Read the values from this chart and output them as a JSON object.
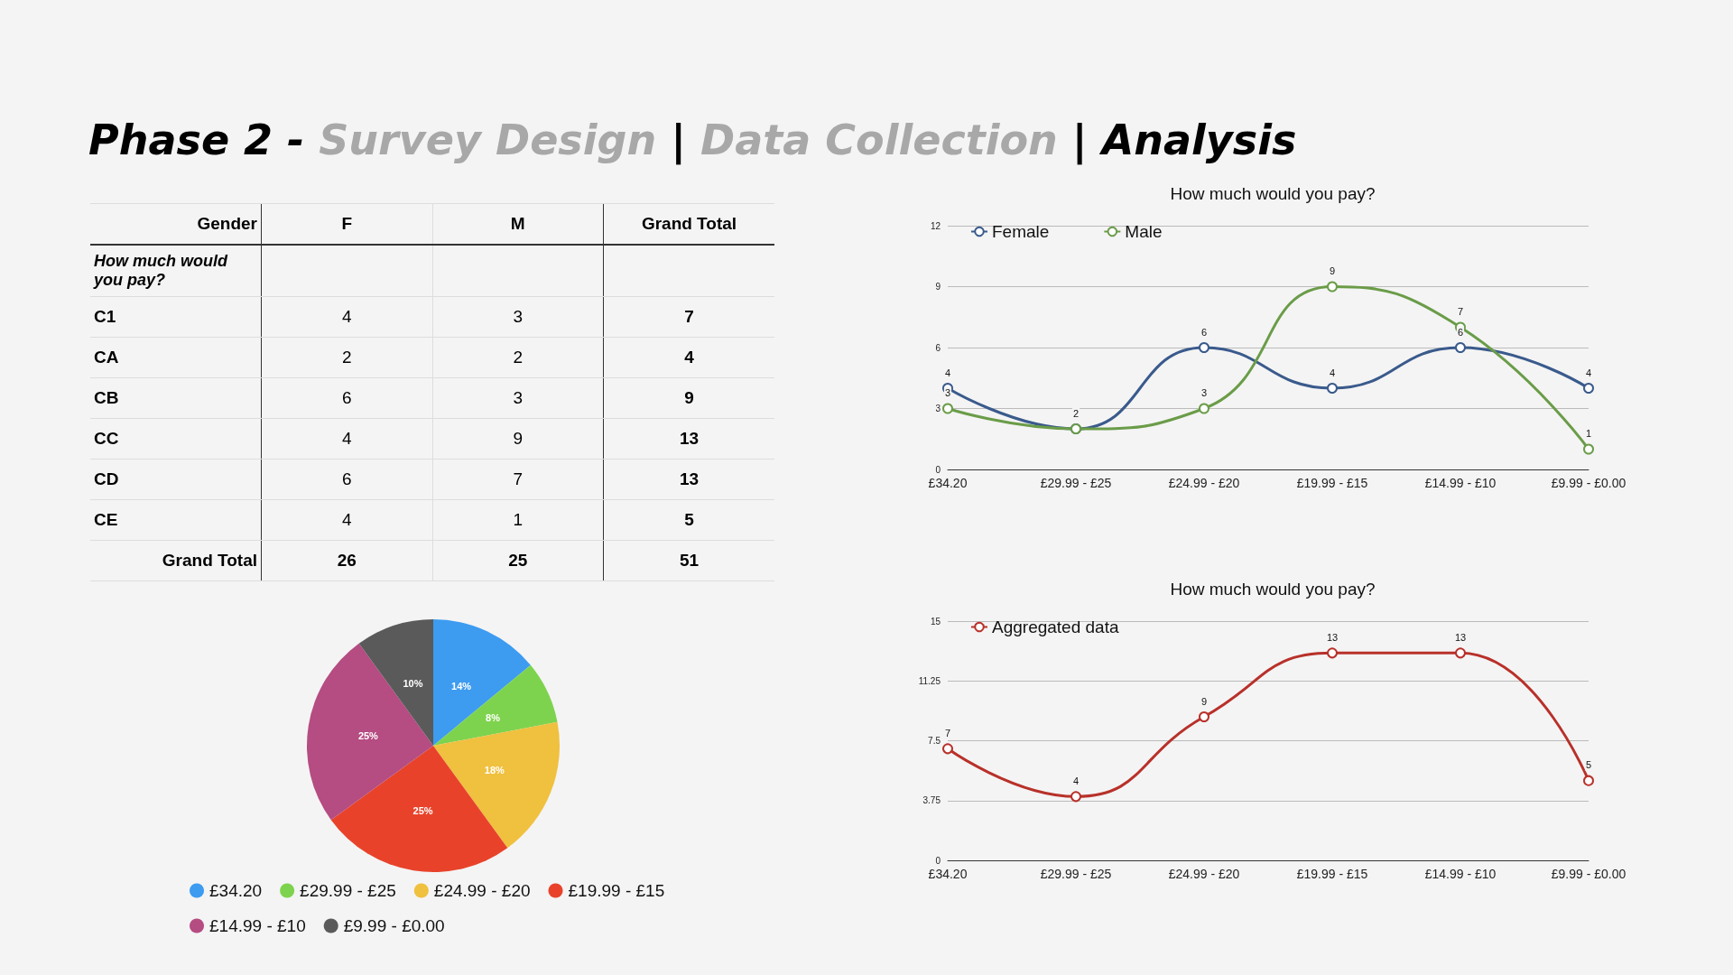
{
  "chart_data": [
    {
      "type": "other",
      "title": "Phase 2 - Survey Design | Data Collection | Analysis",
      "xlabel": "Gender",
      "ylabel": "How much would you pay?",
      "categories": [
        "C1",
        "CA",
        "CB",
        "CC",
        "CD",
        "CE",
        "Grand Total"
      ],
      "data_labels": true,
      "series": [
        {
          "name": "F",
          "values": [
            4,
            2,
            6,
            4,
            6,
            4,
            26
          ]
        },
        {
          "name": "M",
          "values": [
            3,
            2,
            3,
            9,
            7,
            1,
            25
          ]
        },
        {
          "name": "Grand Total",
          "values": [
            7,
            4,
            9,
            13,
            13,
            5,
            51
          ]
        }
      ]
    },
    {
      "type": "pie",
      "categories": [
        "£34.20",
        "£29.99 - £25",
        "£24.99 - £20",
        "£19.99 - £15",
        "£14.99 - £10",
        "£9.99 - £0.00"
      ],
      "values": [
        14,
        8,
        18,
        25,
        25,
        10
      ],
      "value_labels": [
        "14%",
        "8%",
        "18%",
        "25%",
        "25%",
        "10%"
      ],
      "colors": [
        "#3d9bf0",
        "#7ed34e",
        "#f0c03f",
        "#e8432a",
        "#b54c82",
        "#5a5a5a"
      ],
      "legend": "bottom"
    },
    {
      "type": "line",
      "title": "How much would you pay?",
      "categories": [
        "£34.20",
        "£29.99 - £25",
        "£24.99 - £20",
        "£19.99 - £15",
        "£14.99 - £10",
        "£9.99 - £0.00"
      ],
      "ylim": [
        0,
        12
      ],
      "yticks": [
        0,
        3,
        6,
        9,
        12
      ],
      "grid": "y",
      "legend": "top left",
      "marker": "circle",
      "data_labels": true,
      "series": [
        {
          "name": "Female",
          "color": "#3a5a8c",
          "values": [
            4,
            2,
            6,
            4,
            6,
            4
          ]
        },
        {
          "name": "Male",
          "color": "#6a9c48",
          "values": [
            3,
            2,
            3,
            9,
            7,
            1
          ],
          "value_labels": [
            "3",
            null,
            "3",
            "9",
            "7",
            "1"
          ]
        }
      ]
    },
    {
      "type": "line",
      "title": "How much would you pay?",
      "categories": [
        "£34.20",
        "£29.99 - £25",
        "£24.99 - £20",
        "£19.99 - £15",
        "£14.99 - £10",
        "£9.99 - £0.00"
      ],
      "ylim": [
        0,
        15
      ],
      "yticks": [
        0,
        3.75,
        7.5,
        11.25,
        15
      ],
      "grid": "y",
      "legend": "top left",
      "marker": "circle",
      "data_labels": true,
      "series": [
        {
          "name": "Aggregated data",
          "color": "#b8312a",
          "values": [
            7,
            4,
            9,
            13,
            13,
            5
          ]
        }
      ]
    }
  ]
}
